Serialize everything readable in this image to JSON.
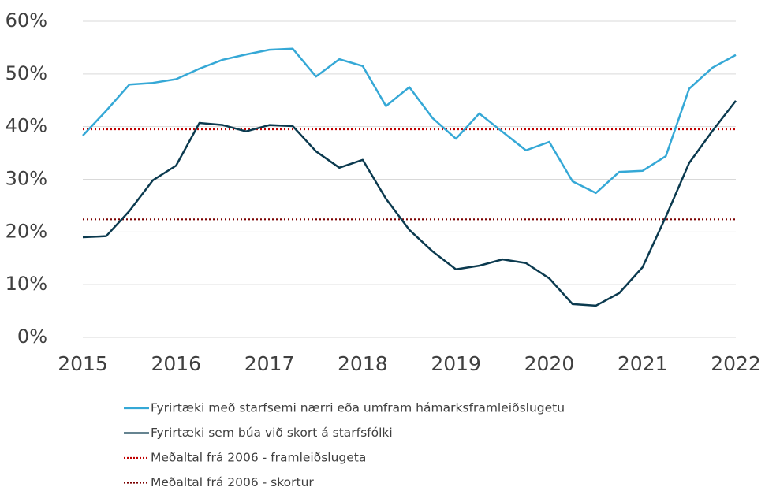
{
  "chart_data": {
    "type": "line",
    "x": [
      2015,
      2015.25,
      2015.5,
      2015.75,
      2016,
      2016.25,
      2016.5,
      2016.75,
      2017,
      2017.25,
      2017.5,
      2017.75,
      2018,
      2018.25,
      2018.5,
      2018.75,
      2019,
      2019.25,
      2019.5,
      2019.75,
      2020,
      2020.25,
      2020.5,
      2020.75,
      2021,
      2021.25,
      2021.5,
      2021.75,
      2022
    ],
    "series": [
      {
        "name": "Fyrirtæki með starfsemi nærri eða umfram hámarksframleiðslugetu",
        "color": "#35a8d6",
        "values": [
          38.3,
          43,
          48,
          48.3,
          49,
          51,
          52.7,
          53.7,
          54.6,
          54.8,
          49.5,
          52.8,
          51.5,
          43.9,
          47.5,
          41.6,
          37.7,
          42.5,
          39,
          35.5,
          37.1,
          29.6,
          27.4,
          31.4,
          31.6,
          34.4,
          47.2,
          51.2,
          53.6
        ]
      },
      {
        "name": "Fyrirtæki sem búa við skort á starfsfólki",
        "color": "#0b3a4f",
        "values": [
          19,
          19.2,
          24,
          29.8,
          32.6,
          40.7,
          40.3,
          39.1,
          40.3,
          40.1,
          35.3,
          32.2,
          33.7,
          26.3,
          20.4,
          16.3,
          12.9,
          13.6,
          14.8,
          14.1,
          11.2,
          6.3,
          6,
          8.4,
          13.3,
          22.9,
          33.1,
          39.2,
          44.9
        ]
      }
    ],
    "reference_lines": [
      {
        "name": "Meðaltal frá 2006 - framleiðslugeta",
        "color": "#c00000",
        "value": 39.5
      },
      {
        "name": "Meðaltal frá 2006 - skortur",
        "color": "#7b0000",
        "value": 22.4
      }
    ],
    "xlim": [
      2015,
      2022
    ],
    "xticks": [
      2015,
      2016,
      2017,
      2018,
      2019,
      2020,
      2021,
      2022
    ],
    "ylim": [
      0,
      60
    ],
    "yticks": [
      {
        "value": 0,
        "label": "0%"
      },
      {
        "value": 10,
        "label": "10%"
      },
      {
        "value": 20,
        "label": "20%"
      },
      {
        "value": 30,
        "label": "30%"
      },
      {
        "value": 40,
        "label": "40%"
      },
      {
        "value": 50,
        "label": "50%"
      },
      {
        "value": 60,
        "label": "60%"
      }
    ],
    "grid": true
  }
}
